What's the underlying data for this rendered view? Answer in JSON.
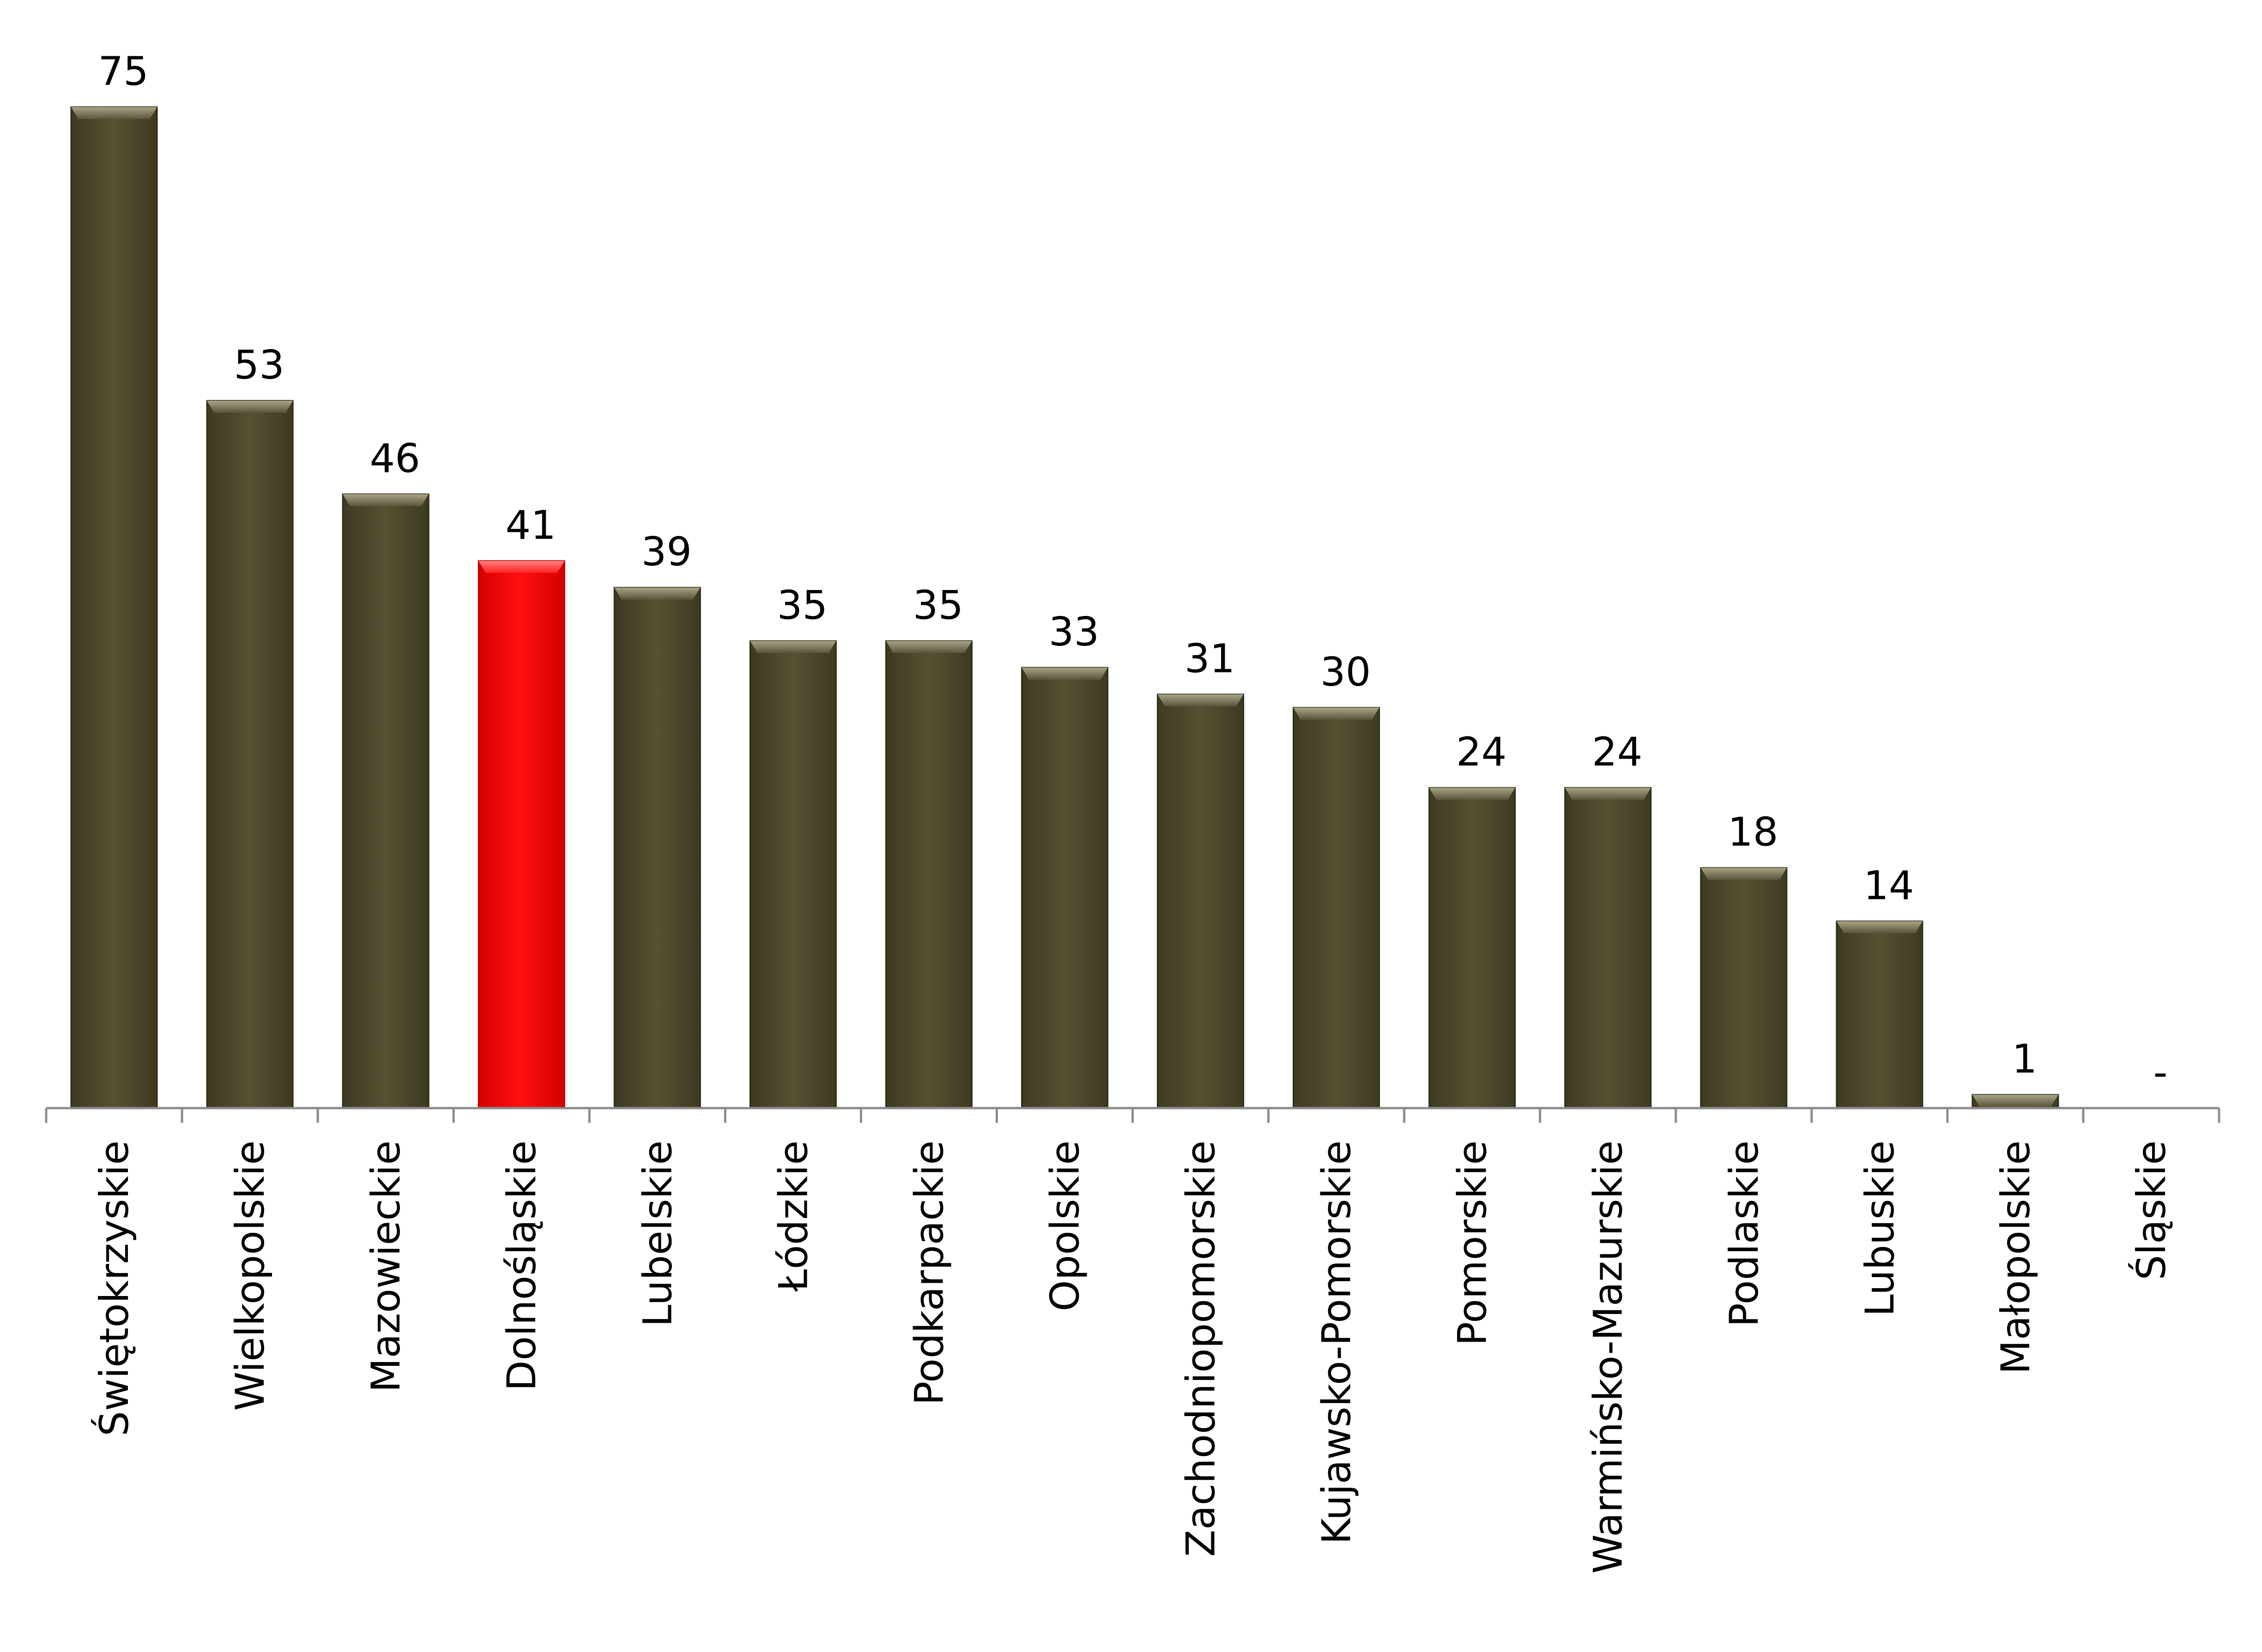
{
  "chart_data": {
    "type": "bar",
    "title": "",
    "xlabel": "",
    "ylabel": "",
    "ylim": [
      0,
      75
    ],
    "grid": false,
    "legend": "none",
    "categories": [
      "Świętokrzyskie",
      "Wielkopolskie",
      "Mazowieckie",
      "Dolnośląskie",
      "Lubelskie",
      "Łódzkie",
      "Podkarpackie",
      "Opolskie",
      "Zachodniopomorskie",
      "Kujawsko-Pomorskie",
      "Pomorskie",
      "Warmińsko-Mazurskie",
      "Podlaskie",
      "Lubuskie",
      "Małopolskie",
      "Śląskie"
    ],
    "values": [
      75,
      53,
      46,
      41,
      39,
      35,
      35,
      33,
      31,
      30,
      24,
      24,
      18,
      14,
      1,
      0
    ],
    "data_labels": [
      "75",
      "53",
      "46",
      "41",
      "39",
      "35",
      "35",
      "33",
      "31",
      "30",
      "24",
      "24",
      "18",
      "14",
      "1",
      "-"
    ],
    "colors": {
      "default_bar": "#4f4a2f",
      "highlight_bar": "#ff0000",
      "axis": "#8c8c8c"
    },
    "highlight_index": 3
  }
}
